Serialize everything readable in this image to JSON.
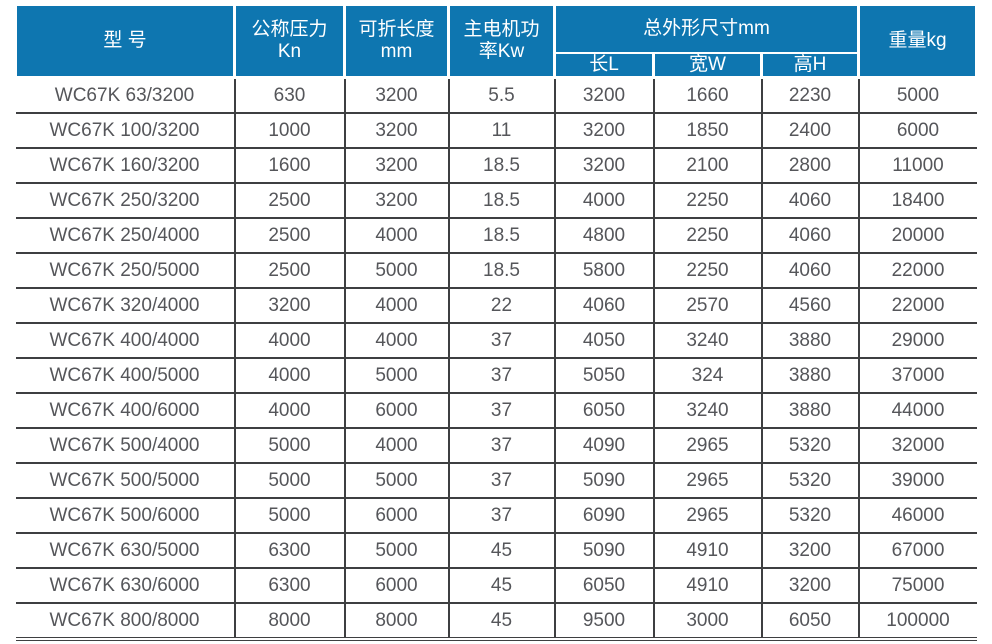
{
  "colors": {
    "header_bg": "#0e76b0",
    "header_text": "#ffffff",
    "body_text": "#55565a",
    "border": "#3e3f41"
  },
  "table": {
    "header": {
      "model": "型 号",
      "pressure_line1": "公称压力",
      "pressure_line2": "Kn",
      "length_line1": "可折长度",
      "length_line2": "mm",
      "motor_line1": "主电机功",
      "motor_line2": "率Kw",
      "dimensions_group": "总外形尺寸mm",
      "dim_length": "长L",
      "dim_width": "宽W",
      "dim_height": "高H",
      "weight": "重量kg"
    },
    "rows": [
      [
        "WC67K 63/3200",
        "630",
        "3200",
        "5.5",
        "3200",
        "1660",
        "2230",
        "5000"
      ],
      [
        "WC67K 100/3200",
        "1000",
        "3200",
        "11",
        "3200",
        "1850",
        "2400",
        "6000"
      ],
      [
        "WC67K 160/3200",
        "1600",
        "3200",
        "18.5",
        "3200",
        "2100",
        "2800",
        "11000"
      ],
      [
        "WC67K 250/3200",
        "2500",
        "3200",
        "18.5",
        "4000",
        "2250",
        "4060",
        "18400"
      ],
      [
        "WC67K 250/4000",
        "2500",
        "4000",
        "18.5",
        "4800",
        "2250",
        "4060",
        "20000"
      ],
      [
        "WC67K 250/5000",
        "2500",
        "5000",
        "18.5",
        "5800",
        "2250",
        "4060",
        "22000"
      ],
      [
        "WC67K 320/4000",
        "3200",
        "4000",
        "22",
        "4060",
        "2570",
        "4560",
        "22000"
      ],
      [
        "WC67K 400/4000",
        "4000",
        "4000",
        "37",
        "4050",
        "3240",
        "3880",
        "29000"
      ],
      [
        "WC67K 400/5000",
        "4000",
        "5000",
        "37",
        "5050",
        "324",
        "3880",
        "37000"
      ],
      [
        "WC67K 400/6000",
        "4000",
        "6000",
        "37",
        "6050",
        "3240",
        "3880",
        "44000"
      ],
      [
        "WC67K 500/4000",
        "5000",
        "4000",
        "37",
        "4090",
        "2965",
        "5320",
        "32000"
      ],
      [
        "WC67K 500/5000",
        "5000",
        "5000",
        "37",
        "5090",
        "2965",
        "5320",
        "39000"
      ],
      [
        "WC67K 500/6000",
        "5000",
        "6000",
        "37",
        "6090",
        "2965",
        "5320",
        "46000"
      ],
      [
        "WC67K 630/5000",
        "6300",
        "5000",
        "45",
        "5090",
        "4910",
        "3200",
        "67000"
      ],
      [
        "WC67K 630/6000",
        "6300",
        "6000",
        "45",
        "6050",
        "4910",
        "3200",
        "75000"
      ],
      [
        "WC67K 800/8000",
        "8000",
        "8000",
        "45",
        "9500",
        "3000",
        "6050",
        "100000"
      ]
    ]
  },
  "chart_data": {
    "type": "table",
    "columns": [
      "型 号",
      "公称压力Kn",
      "可折长度mm",
      "主电机功率Kw",
      "总外形尺寸mm 长L",
      "总外形尺寸mm 宽W",
      "总外形尺寸mm 高H",
      "重量kg"
    ],
    "rows": [
      [
        "WC67K 63/3200",
        630,
        3200,
        5.5,
        3200,
        1660,
        2230,
        5000
      ],
      [
        "WC67K 100/3200",
        1000,
        3200,
        11,
        3200,
        1850,
        2400,
        6000
      ],
      [
        "WC67K 160/3200",
        1600,
        3200,
        18.5,
        3200,
        2100,
        2800,
        11000
      ],
      [
        "WC67K 250/3200",
        2500,
        3200,
        18.5,
        4000,
        2250,
        4060,
        18400
      ],
      [
        "WC67K 250/4000",
        2500,
        4000,
        18.5,
        4800,
        2250,
        4060,
        20000
      ],
      [
        "WC67K 250/5000",
        2500,
        5000,
        18.5,
        5800,
        2250,
        4060,
        22000
      ],
      [
        "WC67K 320/4000",
        3200,
        4000,
        22,
        4060,
        2570,
        4560,
        22000
      ],
      [
        "WC67K 400/4000",
        4000,
        4000,
        37,
        4050,
        3240,
        3880,
        29000
      ],
      [
        "WC67K 400/5000",
        4000,
        5000,
        37,
        5050,
        324,
        3880,
        37000
      ],
      [
        "WC67K 400/6000",
        4000,
        6000,
        37,
        6050,
        3240,
        3880,
        44000
      ],
      [
        "WC67K 500/4000",
        5000,
        4000,
        37,
        4090,
        2965,
        5320,
        32000
      ],
      [
        "WC67K 500/5000",
        5000,
        5000,
        37,
        5090,
        2965,
        5320,
        39000
      ],
      [
        "WC67K 500/6000",
        5000,
        6000,
        37,
        6090,
        2965,
        5320,
        46000
      ],
      [
        "WC67K 630/5000",
        6300,
        5000,
        45,
        5090,
        4910,
        3200,
        67000
      ],
      [
        "WC67K 630/6000",
        6300,
        6000,
        45,
        6050,
        4910,
        3200,
        75000
      ],
      [
        "WC67K 800/8000",
        8000,
        8000,
        45,
        9500,
        3000,
        6050,
        100000
      ]
    ]
  }
}
